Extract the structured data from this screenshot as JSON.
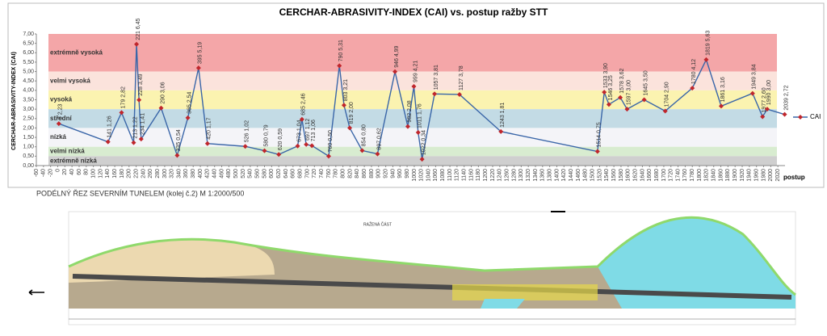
{
  "chart_data": {
    "type": "line",
    "title": "CERCHAR-ABRASIVITY-INDEX (CAI) vs. postup ražby STT",
    "y_label": "CERCHAR-ABRASIVITY-INDEX (CAI)",
    "x_label": "postup",
    "xlim": [
      -60,
      2040
    ],
    "xticks": [
      -60,
      -40,
      -20,
      0,
      20,
      40,
      60,
      80,
      100,
      120,
      140,
      160,
      180,
      200,
      220,
      240,
      260,
      280,
      300,
      320,
      340,
      360,
      380,
      400,
      420,
      440,
      460,
      480,
      500,
      520,
      540,
      560,
      580,
      600,
      620,
      640,
      660,
      680,
      700,
      720,
      740,
      760,
      780,
      800,
      820,
      840,
      860,
      880,
      900,
      920,
      940,
      960,
      980,
      1000,
      1020,
      1040,
      1060,
      1080,
      1100,
      1120,
      1140,
      1160,
      1180,
      1200,
      1220,
      1240,
      1260,
      1280,
      1300,
      1320,
      1340,
      1360,
      1380,
      1400,
      1420,
      1440,
      1460,
      1480,
      1500,
      1520,
      1540,
      1560,
      1580,
      1600,
      1620,
      1640,
      1660,
      1680,
      1700,
      1720,
      1740,
      1760,
      1780,
      1800,
      1820,
      1840,
      1860,
      1880,
      1900,
      1920,
      1940,
      1960,
      1980,
      2000,
      2020
    ],
    "ylim": [
      0,
      7
    ],
    "yticks": [
      {
        "value": 0,
        "label": "0,00"
      },
      {
        "value": 0.5,
        "label": "0,50"
      },
      {
        "value": 1,
        "label": "1,00"
      },
      {
        "value": 1.5,
        "label": "1,50"
      },
      {
        "value": 2,
        "label": "2,00"
      },
      {
        "value": 2.5,
        "label": "2,50"
      },
      {
        "value": 3,
        "label": "3,00"
      },
      {
        "value": 3.5,
        "label": "3,50"
      },
      {
        "value": 4,
        "label": "4,00"
      },
      {
        "value": 4.5,
        "label": "4,50"
      },
      {
        "value": 5,
        "label": "5,00"
      },
      {
        "value": 5.5,
        "label": "5,50"
      },
      {
        "value": 6,
        "label": "6,00"
      },
      {
        "value": 6.5,
        "label": "6,50"
      },
      {
        "value": 7,
        "label": "7,00"
      }
    ],
    "bands": [
      {
        "name": "extrémně vysoká",
        "from": 5,
        "to": 7,
        "color": "#f4a6a8"
      },
      {
        "name": "velmi vysoká",
        "from": 4,
        "to": 5,
        "color": "#fbe3dc"
      },
      {
        "name": "vysoká",
        "from": 3,
        "to": 4,
        "color": "#fbf3b0"
      },
      {
        "name": "střední",
        "from": 2,
        "to": 3,
        "color": "#c3dbe5"
      },
      {
        "name": "nízká",
        "from": 1,
        "to": 2,
        "color": "#f4f4f8"
      },
      {
        "name": "velmi nízká",
        "from": 0.5,
        "to": 1,
        "color": "#d8ecd0"
      },
      {
        "name": "extrémně nízká",
        "from": 0,
        "to": 0.5,
        "color": "#cfcfcf"
      }
    ],
    "legend_position": "right",
    "series": [
      {
        "name": "CAI",
        "color": "#3a66a8",
        "marker_color": "#c0262c",
        "x": [
          3,
          141,
          179,
          213,
          221,
          228,
          234,
          290,
          335,
          365,
          395,
          420,
          526,
          580,
          620,
          673,
          685,
          697,
          713,
          760,
          790,
          803,
          819,
          854,
          897,
          946,
          982,
          999,
          1011,
          1022,
          1057,
          1127,
          1243,
          1514,
          1533,
          1546,
          1578,
          1597,
          1645,
          1704,
          1780,
          1819,
          1861,
          1949,
          1977,
          1990,
          2039
        ],
        "values": [
          2.23,
          1.26,
          2.82,
          1.22,
          6.45,
          3.49,
          1.41,
          3.06,
          0.54,
          2.54,
          5.19,
          1.17,
          1.02,
          0.79,
          0.59,
          1.04,
          2.46,
          1.12,
          1.06,
          0.5,
          5.31,
          3.21,
          2.0,
          0.8,
          0.62,
          4.99,
          2.08,
          4.21,
          1.76,
          0.34,
          3.81,
          3.78,
          1.81,
          0.75,
          3.9,
          3.25,
          3.62,
          3.0,
          3.5,
          2.9,
          4.12,
          5.63,
          3.16,
          3.84,
          2.6,
          3.0,
          2.72
        ],
        "value_labels": [
          "3 2,23",
          "141 1,26",
          "179 2,82",
          "213 1,22",
          "221 6,45",
          "228 3,49",
          "234 1,41",
          "290 3,06",
          "335 0,54",
          "365 2,54",
          "395 5,19",
          "420 1,17",
          "526 1,02",
          "580 0,79",
          "620 0,59",
          "673 1,04",
          "685 2,46",
          "697 1,12",
          "713 1,06",
          "760 0,50",
          "790 5,31",
          "803 3,21",
          "819 2,00",
          "854 0,80",
          "897 0,62",
          "946 4,99",
          "982 2,08",
          "999 4,21",
          "1011 1,76",
          "1022 0,34",
          "1057 3,81",
          "1127 3,78",
          "1243 1,81",
          "1514 0,75",
          "1533 3,90",
          "1546 3,25",
          "1578 3,62",
          "1597 3,00",
          "1645 3,50",
          "1704 2,90",
          "1780 4,12",
          "1819 5,63",
          "1861 3,16",
          "1949 3,84",
          "1977 2,60",
          "1990 3,00",
          "2039 2,72"
        ]
      }
    ]
  },
  "section": {
    "title": "PODÉLNÝ ŘEZ SEVERNÍM TUNELEM (kolej č.2)   M 1:2000/500",
    "part_label": "RAŽENÁ ČÁST"
  }
}
